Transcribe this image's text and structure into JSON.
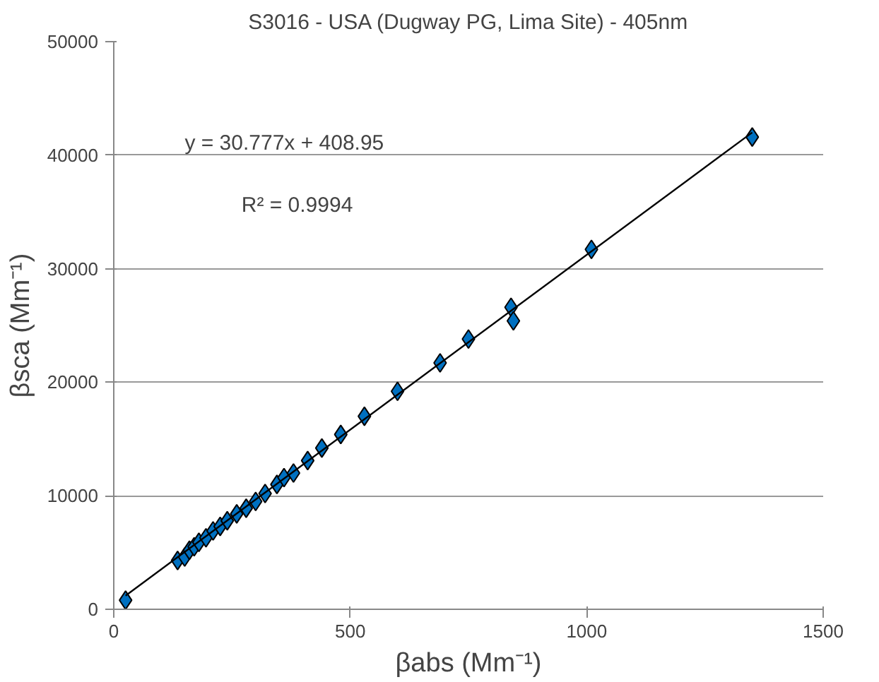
{
  "chart_data": {
    "type": "scatter",
    "title": "S3016 - USA (Dugway PG, Lima Site) - 405nm",
    "xlabel": "βabs (Mm⁻¹)",
    "ylabel": "βsca (Mm⁻¹)",
    "xlim": [
      0,
      1500
    ],
    "xticks": [
      0,
      500,
      1000,
      1500
    ],
    "ylim": [
      0,
      50000
    ],
    "yticks": [
      0,
      10000,
      20000,
      30000,
      40000,
      50000
    ],
    "grid": "y",
    "marker": "diamond",
    "annotations": [
      "y = 30.777x + 408.95",
      "R² = 0.9994"
    ],
    "series": [
      {
        "color": "#0070c0",
        "x": [
          25,
          135,
          150,
          160,
          170,
          180,
          195,
          210,
          225,
          240,
          260,
          280,
          300,
          320,
          345,
          360,
          380,
          410,
          440,
          480,
          530,
          600,
          690,
          750,
          840,
          845,
          1010,
          1350
        ],
        "values": [
          800,
          4300,
          4600,
          5200,
          5500,
          5900,
          6300,
          6900,
          7300,
          7800,
          8400,
          8900,
          9500,
          10200,
          11000,
          11600,
          12000,
          13100,
          14200,
          15400,
          17000,
          19200,
          21700,
          23800,
          26600,
          25400,
          31700,
          41600
        ]
      },
      {
        "type": "line",
        "marker": "none",
        "color": "#000000",
        "x": [
          25,
          1350
        ],
        "values": [
          1200,
          42000
        ]
      }
    ]
  }
}
